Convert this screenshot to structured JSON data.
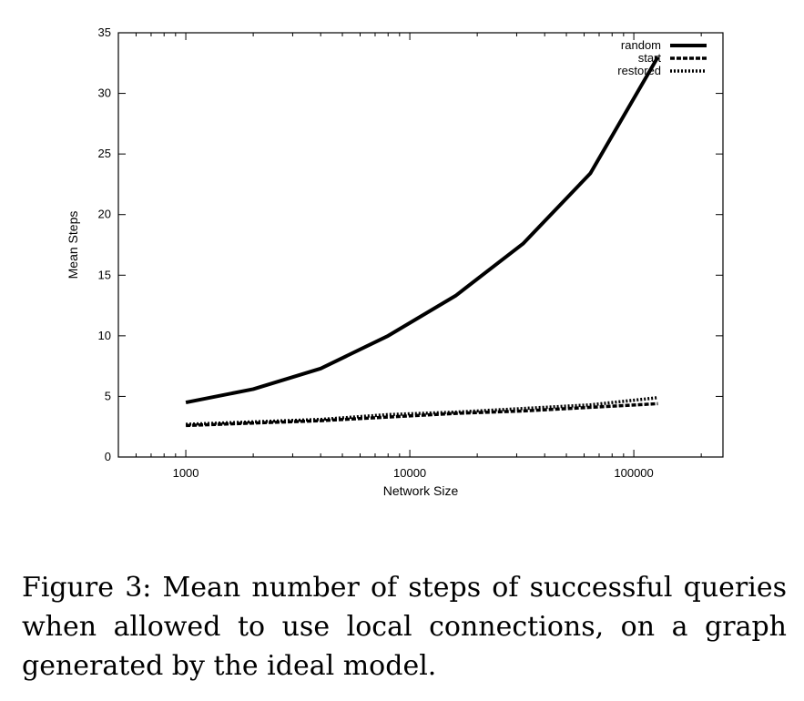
{
  "chart_data": {
    "type": "line",
    "xlabel": "Network Size",
    "ylabel": "Mean Steps",
    "xscale": "log",
    "xlim": [
      500,
      250000
    ],
    "ylim": [
      0,
      35
    ],
    "xticks": [
      1000,
      10000,
      100000
    ],
    "xtick_labels": [
      "1000",
      "10000",
      "100000"
    ],
    "yticks": [
      0,
      5,
      10,
      15,
      20,
      25,
      30,
      35
    ],
    "ytick_labels": [
      "0",
      "5",
      "10",
      "15",
      "20",
      "25",
      "30",
      "35"
    ],
    "grid": false,
    "legend_position": "top-right",
    "x": [
      1000,
      2000,
      4000,
      8000,
      16000,
      32000,
      64000,
      128000
    ],
    "series": [
      {
        "name": "random",
        "style": "solid",
        "values": [
          4.5,
          5.6,
          7.3,
          10.0,
          13.3,
          17.6,
          23.4,
          33.0
        ]
      },
      {
        "name": "start",
        "style": "dashed",
        "values": [
          2.6,
          2.8,
          3.0,
          3.3,
          3.6,
          3.8,
          4.1,
          4.4
        ]
      },
      {
        "name": "restored",
        "style": "dotted",
        "values": [
          2.7,
          2.9,
          3.1,
          3.5,
          3.7,
          4.0,
          4.3,
          4.9
        ]
      }
    ]
  },
  "caption": "Figure 3: Mean number of steps of successful queries when allowed to use local connections, on a graph generated by the ideal model."
}
